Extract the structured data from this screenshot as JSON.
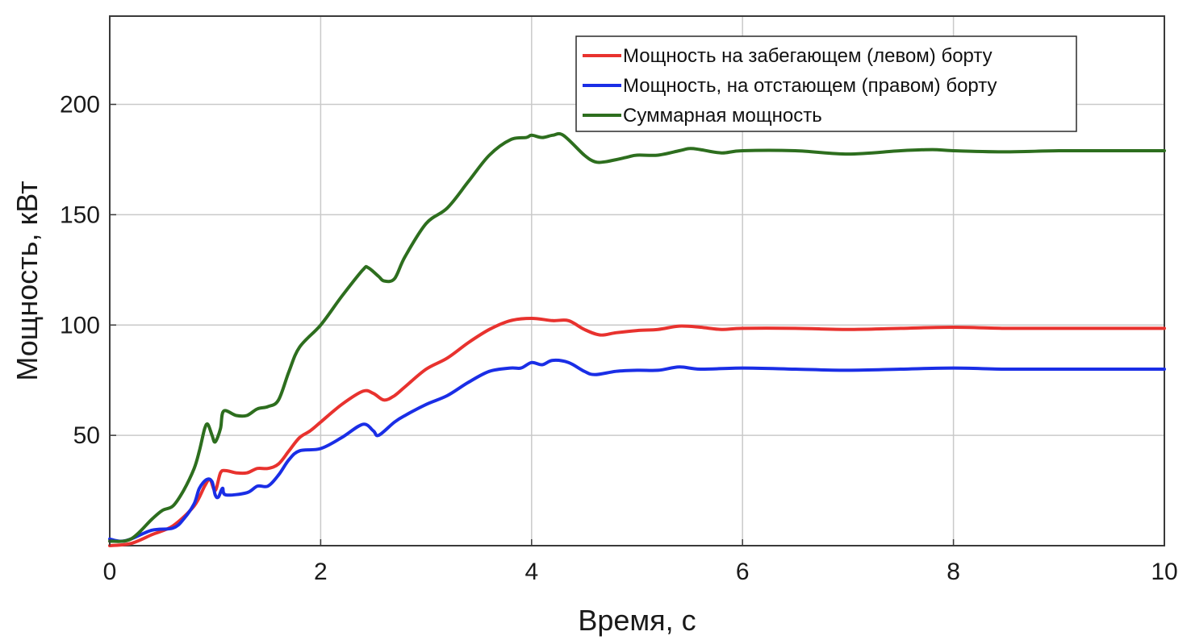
{
  "chart_data": {
    "type": "line",
    "title": "",
    "xlabel": "Время, с",
    "ylabel": "Мощность, кВт",
    "xlim": [
      0,
      10
    ],
    "ylim": [
      0,
      240
    ],
    "xticks": [
      0,
      2,
      4,
      6,
      8,
      10
    ],
    "yticks": [
      50,
      100,
      150,
      200
    ],
    "xtick_labels": [
      "0",
      "2",
      "4",
      "6",
      "8",
      "10"
    ],
    "ytick_labels": [
      "50",
      "100",
      "150",
      "200"
    ],
    "grid": true,
    "legend_position": "top-right",
    "series": [
      {
        "name": "Мощность на забегающем (левом) борту",
        "color": "#e8322e",
        "points": [
          [
            0,
            0
          ],
          [
            0.2,
            1
          ],
          [
            0.4,
            5
          ],
          [
            0.6,
            9
          ],
          [
            0.8,
            18
          ],
          [
            0.9,
            27
          ],
          [
            0.95,
            30
          ],
          [
            1.0,
            25
          ],
          [
            1.05,
            33
          ],
          [
            1.1,
            34
          ],
          [
            1.2,
            33
          ],
          [
            1.3,
            33
          ],
          [
            1.4,
            35
          ],
          [
            1.5,
            35
          ],
          [
            1.6,
            37
          ],
          [
            1.7,
            43
          ],
          [
            1.8,
            49
          ],
          [
            1.9,
            52
          ],
          [
            2.0,
            56
          ],
          [
            2.2,
            64
          ],
          [
            2.4,
            70
          ],
          [
            2.5,
            69
          ],
          [
            2.6,
            66
          ],
          [
            2.7,
            68
          ],
          [
            2.8,
            72
          ],
          [
            3.0,
            80
          ],
          [
            3.2,
            85
          ],
          [
            3.4,
            92
          ],
          [
            3.6,
            98
          ],
          [
            3.8,
            102
          ],
          [
            4.0,
            103
          ],
          [
            4.2,
            102
          ],
          [
            4.35,
            102
          ],
          [
            4.5,
            98
          ],
          [
            4.65,
            95.5
          ],
          [
            4.8,
            96.5
          ],
          [
            5.0,
            97.5
          ],
          [
            5.2,
            98
          ],
          [
            5.4,
            99.5
          ],
          [
            5.6,
            99
          ],
          [
            5.8,
            98
          ],
          [
            6.0,
            98.5
          ],
          [
            6.5,
            98.5
          ],
          [
            7.0,
            98
          ],
          [
            7.5,
            98.5
          ],
          [
            8.0,
            99
          ],
          [
            8.5,
            98.5
          ],
          [
            9.0,
            98.5
          ],
          [
            9.5,
            98.5
          ],
          [
            10.0,
            98.5
          ]
        ]
      },
      {
        "name": "Мощность, на отстающем (правом) борту",
        "color": "#1a2ee6",
        "points": [
          [
            0,
            3
          ],
          [
            0.1,
            2
          ],
          [
            0.2,
            3
          ],
          [
            0.4,
            7
          ],
          [
            0.6,
            8
          ],
          [
            0.7,
            12
          ],
          [
            0.8,
            19
          ],
          [
            0.85,
            26
          ],
          [
            0.92,
            30
          ],
          [
            0.97,
            29
          ],
          [
            1.0,
            23
          ],
          [
            1.03,
            22
          ],
          [
            1.07,
            26
          ],
          [
            1.1,
            23
          ],
          [
            1.3,
            24
          ],
          [
            1.4,
            27
          ],
          [
            1.5,
            27
          ],
          [
            1.6,
            32
          ],
          [
            1.7,
            39
          ],
          [
            1.8,
            43
          ],
          [
            2.0,
            44
          ],
          [
            2.2,
            49
          ],
          [
            2.4,
            55
          ],
          [
            2.5,
            52
          ],
          [
            2.55,
            50
          ],
          [
            2.7,
            56
          ],
          [
            2.8,
            59
          ],
          [
            3.0,
            64
          ],
          [
            3.2,
            68
          ],
          [
            3.4,
            74
          ],
          [
            3.6,
            79
          ],
          [
            3.8,
            80.5
          ],
          [
            3.9,
            80.5
          ],
          [
            4.0,
            83
          ],
          [
            4.1,
            82
          ],
          [
            4.2,
            84
          ],
          [
            4.35,
            83
          ],
          [
            4.5,
            79
          ],
          [
            4.6,
            77.5
          ],
          [
            4.8,
            79
          ],
          [
            5.0,
            79.5
          ],
          [
            5.2,
            79.5
          ],
          [
            5.4,
            81
          ],
          [
            5.6,
            80
          ],
          [
            6.0,
            80.5
          ],
          [
            6.5,
            80
          ],
          [
            7.0,
            79.5
          ],
          [
            7.5,
            80
          ],
          [
            8.0,
            80.5
          ],
          [
            8.5,
            80
          ],
          [
            9.0,
            80
          ],
          [
            9.5,
            80
          ],
          [
            10.0,
            80
          ]
        ]
      },
      {
        "name": "Суммарная мощность",
        "color": "#2d6e1e",
        "points": [
          [
            0,
            2
          ],
          [
            0.2,
            3
          ],
          [
            0.4,
            12
          ],
          [
            0.5,
            16
          ],
          [
            0.6,
            18
          ],
          [
            0.7,
            25
          ],
          [
            0.8,
            35
          ],
          [
            0.85,
            43
          ],
          [
            0.9,
            53
          ],
          [
            0.93,
            55
          ],
          [
            0.97,
            50
          ],
          [
            1.0,
            47
          ],
          [
            1.05,
            53
          ],
          [
            1.08,
            61
          ],
          [
            1.2,
            59
          ],
          [
            1.3,
            59
          ],
          [
            1.4,
            62
          ],
          [
            1.5,
            63
          ],
          [
            1.6,
            66
          ],
          [
            1.7,
            79
          ],
          [
            1.8,
            90
          ],
          [
            2.0,
            100
          ],
          [
            2.2,
            113
          ],
          [
            2.4,
            125
          ],
          [
            2.45,
            126
          ],
          [
            2.55,
            122
          ],
          [
            2.6,
            120
          ],
          [
            2.7,
            121
          ],
          [
            2.8,
            131
          ],
          [
            3.0,
            146
          ],
          [
            3.2,
            153
          ],
          [
            3.4,
            165
          ],
          [
            3.6,
            177
          ],
          [
            3.8,
            184
          ],
          [
            3.95,
            185
          ],
          [
            4.0,
            186
          ],
          [
            4.1,
            185
          ],
          [
            4.2,
            186
          ],
          [
            4.3,
            186
          ],
          [
            4.5,
            177
          ],
          [
            4.6,
            174
          ],
          [
            4.7,
            174
          ],
          [
            4.9,
            176
          ],
          [
            5.0,
            177
          ],
          [
            5.2,
            177
          ],
          [
            5.4,
            179
          ],
          [
            5.5,
            180
          ],
          [
            5.6,
            179.5
          ],
          [
            5.8,
            178
          ],
          [
            6.0,
            179
          ],
          [
            6.5,
            179
          ],
          [
            7.0,
            177.5
          ],
          [
            7.5,
            179
          ],
          [
            7.8,
            179.5
          ],
          [
            8.0,
            179
          ],
          [
            8.5,
            178.5
          ],
          [
            9.0,
            179
          ],
          [
            9.5,
            179
          ],
          [
            10.0,
            179
          ]
        ]
      }
    ]
  }
}
